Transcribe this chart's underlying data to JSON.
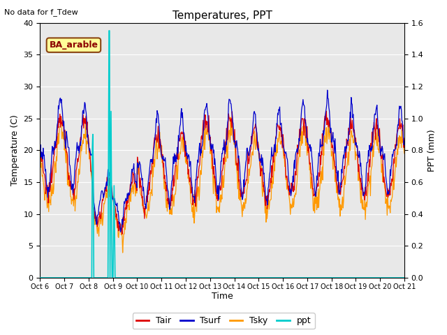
{
  "title": "Temperatures, PPT",
  "top_left_text": "No data for f_Tdew",
  "site_label": "BA_arable",
  "xlabel": "Time",
  "ylabel_left": "Temperature (C)",
  "ylabel_right": "PPT (mm)",
  "ylim_left": [
    0,
    40
  ],
  "ylim_right": [
    0.0,
    1.6
  ],
  "yticks_left": [
    0,
    5,
    10,
    15,
    20,
    25,
    30,
    35,
    40
  ],
  "yticks_right": [
    0.0,
    0.2,
    0.4,
    0.6,
    0.8,
    1.0,
    1.2,
    1.4,
    1.6
  ],
  "xtick_labels": [
    "Oct 6",
    "Oct 7",
    "Oct 8",
    "Oct 9",
    "Oct 10ct 11",
    "Oct 12ct 13",
    "Oct 14ct 15",
    "Oct 16ct 17",
    "Oct 18ct 19",
    "Oct 20ct 21"
  ],
  "color_tair": "#dd0000",
  "color_tsurf": "#0000cc",
  "color_tsky": "#ff9900",
  "color_ppt": "#00cccc",
  "bg_color": "#e8e8e8",
  "legend_labels": [
    "Tair",
    "Tsurf",
    "Tsky",
    "ppt"
  ],
  "figsize": [
    6.4,
    4.8
  ],
  "dpi": 100
}
